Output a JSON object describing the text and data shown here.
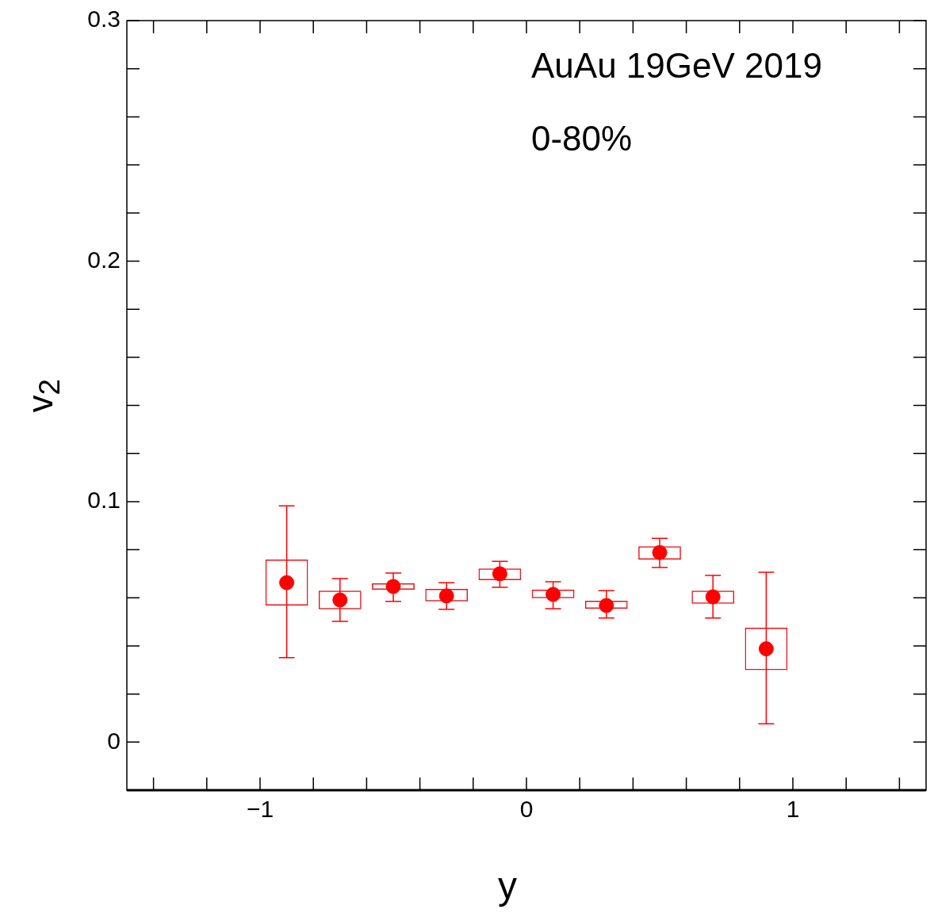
{
  "chart_data": {
    "type": "scatter",
    "xlabel": "y",
    "ylabel": "v$_{2}$",
    "annotations": [
      "AuAu 19GeV 2019",
      "0-80%"
    ],
    "xlim": [
      -1.5,
      1.5
    ],
    "ylim": [
      -0.02,
      0.3
    ],
    "xticks": [
      {
        "value": -1.4,
        "label": null
      },
      {
        "value": -1.2,
        "label": null
      },
      {
        "value": -1,
        "label": "−1"
      },
      {
        "value": -0.8,
        "label": null
      },
      {
        "value": -0.6,
        "label": null
      },
      {
        "value": -0.4,
        "label": null
      },
      {
        "value": -0.2,
        "label": null
      },
      0,
      {
        "value": 0.2,
        "label": null
      },
      {
        "value": 0.4,
        "label": null
      },
      {
        "value": 0.6,
        "label": null
      },
      {
        "value": 0.8,
        "label": null
      },
      1,
      {
        "value": 1.2,
        "label": null
      },
      {
        "value": 1.4,
        "label": null
      }
    ],
    "yticks": [
      0,
      {
        "value": 0.02,
        "label": null
      },
      {
        "value": 0.04,
        "label": null
      },
      {
        "value": 0.06,
        "label": null
      },
      {
        "value": 0.08,
        "label": null
      },
      0.1,
      {
        "value": 0.12,
        "label": null
      },
      {
        "value": 0.14,
        "label": null
      },
      {
        "value": 0.16,
        "label": null
      },
      {
        "value": 0.18,
        "label": null
      },
      0.2,
      {
        "value": 0.22,
        "label": null
      },
      {
        "value": 0.24,
        "label": null
      },
      {
        "value": 0.26,
        "label": null
      },
      {
        "value": 0.28,
        "label": null
      },
      0.3
    ],
    "marker": "circle",
    "series": [
      {
        "type": "bar",
        "color": "#e8161b",
        "x": [
          -0.9,
          -0.7,
          -0.5,
          -0.3,
          -0.1,
          0.1,
          0.3,
          0.5,
          0.7,
          0.9
        ],
        "base": [
          0.0568,
          0.0552,
          0.0634,
          0.0585,
          0.0673,
          0.0598,
          0.0555,
          0.0759,
          0.0575,
          0.0299
        ],
        "values": [
          0.0191,
          0.0078,
          0.0026,
          0.0052,
          0.0049,
          0.0036,
          0.0033,
          0.0055,
          0.0055,
          0.0177
        ]
      },
      {
        "color": "#ff0000",
        "x": [
          -0.9,
          -0.7,
          -0.5,
          -0.3,
          -0.1,
          0.1,
          0.3,
          0.5,
          0.7,
          0.9
        ],
        "values": [
          0.0663,
          0.0591,
          0.0647,
          0.0608,
          0.07,
          0.0614,
          0.0568,
          0.0788,
          0.0604,
          0.0388
        ],
        "errors": [
          [
            0.0351,
            0.0982
          ],
          [
            0.0502,
            0.068
          ],
          [
            0.0585,
            0.0703
          ],
          [
            0.0552,
            0.0663
          ],
          [
            0.0644,
            0.0752
          ],
          [
            0.0555,
            0.0667
          ],
          [
            0.0516,
            0.063
          ],
          [
            0.0726,
            0.0847
          ],
          [
            0.0516,
            0.0693
          ],
          [
            0.0076,
            0.0706
          ]
        ]
      }
    ]
  }
}
